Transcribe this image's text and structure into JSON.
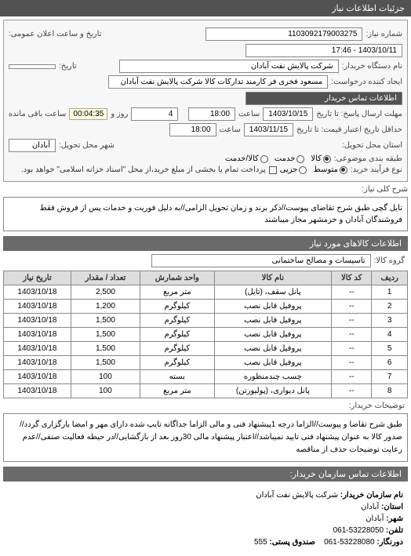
{
  "header": {
    "title": "جزئیات اطلاعات نیاز"
  },
  "top": {
    "req_no_label": "شماره نیاز:",
    "req_no": "1103092179003275",
    "announce_label": "تاریخ و ساعت اعلان عمومی:",
    "announce": "1403/10/11 - 17:46",
    "buyer_label": "نام دستگاه خریدار:",
    "buyer": "شرکت پالایش نفت آبادان",
    "buyer_date_label": "تاریخ:",
    "creator_label": "ایجاد کننده درخواست:",
    "creator": "مسعود فخری فر کارمند تدارکات کالا شرکت پالایش نفت آبادان",
    "contact_label": "اطلاعات تماس خریدار",
    "deadline_label": "مهلت ارسال پاسخ: تا تاریخ",
    "deadline_date": "1403/10/15",
    "hour_label": "ساعت",
    "deadline_hour": "18:00",
    "days_remain": "4",
    "days_label": "روز و",
    "time_remain": "00:04:35",
    "remain_label": "ساعت باقی مانده",
    "validity_label": "حداقل تاریخ اعتبار قیمت: تا تاریخ",
    "validity_date": "1403/11/15",
    "validity_hour": "18:00",
    "province_label": "استان محل تحویل:",
    "city_label": "شهر محل تحویل:",
    "province": "آبادان",
    "bundle_label": "طبقه بندی موضوعی:",
    "bundle_kala": "کالا",
    "bundle_khadamat": "خدمت",
    "bundle_both": "کالا/خدمت",
    "process_label": "نوع فرآیند خرید:",
    "process_mid": "متوسط",
    "process_small": "جزیی",
    "payment_note": "پرداخت تمام یا بخشی از مبلغ خرید،از محل \"اسناد خزانه اسلامی\" خواهد بود."
  },
  "desc": {
    "label": "شرح کلی نیاز:",
    "text": "تایل گچی طبق شرح تقاضای پیوست//ذکر برند و زمان تحویل الزامی//به دلیل فوریت و خدمات پس از فروش فقط فروشندگان آبادان و خرمشهر مجاز میباشند"
  },
  "items_header": "اطلاعات کالاهای مورد نیاز",
  "group_label": "گروه کالا:",
  "group_value": "تاسیسات و مصالح ساختمانی",
  "table": {
    "cols": [
      "ردیف",
      "کد کالا",
      "نام کالا",
      "واحد شمارش",
      "تعداد / مقدار",
      "تاریخ نیاز"
    ],
    "rows": [
      [
        "1",
        "--",
        "پانل سقف، (تایل)",
        "متر مربع",
        "2,500",
        "1403/10/18"
      ],
      [
        "2",
        "--",
        "پروفیل قابل نصب",
        "کیلوگرم",
        "1,200",
        "1403/10/18"
      ],
      [
        "3",
        "--",
        "پروفیل قابل نصب",
        "کیلوگرم",
        "1,500",
        "1403/10/18"
      ],
      [
        "4",
        "--",
        "پروفیل قابل نصب",
        "کیلوگرم",
        "1,500",
        "1403/10/18"
      ],
      [
        "5",
        "--",
        "پروفیل قابل نصب",
        "کیلوگرم",
        "1,500",
        "1403/10/18"
      ],
      [
        "6",
        "--",
        "پروفیل قابل نصب",
        "کیلوگرم",
        "1,500",
        "1403/10/18"
      ],
      [
        "7",
        "--",
        "چسب چندمنظوره",
        "بسته",
        "100",
        "1403/10/18"
      ],
      [
        "8",
        "--",
        "پانل دیواری، (پولیورتن)",
        "متر مربع",
        "100",
        "1403/10/18"
      ]
    ]
  },
  "remarks": {
    "label": "توضیحات خریدار:",
    "text": "طبق شرح تقاضا و پیوست//الزاما درجه 1پیشنهاد فنی و مالی الزاما جداگانه تایپ شده دارای مهر و امضا بارگزاری گردد//صدور کالا به عنوان پیشنهاد فنی تایید نمیباشد//اعتبار پیشنهاد مالی 30روز بعد از بازگشایی//در حیطه فعالیت صنفی//عدم رعایت توضیحات حذف از مناقصه"
  },
  "footer": {
    "title": "اطلاعات تماس سازمان خریدار:",
    "org_label": "نام سازمان خریدار:",
    "org": "شرکت پالایش نفت آبادان",
    "prov_label": "استان:",
    "prov": "آبادان",
    "city_label": "شهر:",
    "city": "آبادان",
    "tel_label": "تلفن:",
    "tel": "53228050-061",
    "fax_label": "دورنگار:",
    "fax": "53228080-061",
    "post_label": "صندوق پستی:",
    "post": "555"
  }
}
